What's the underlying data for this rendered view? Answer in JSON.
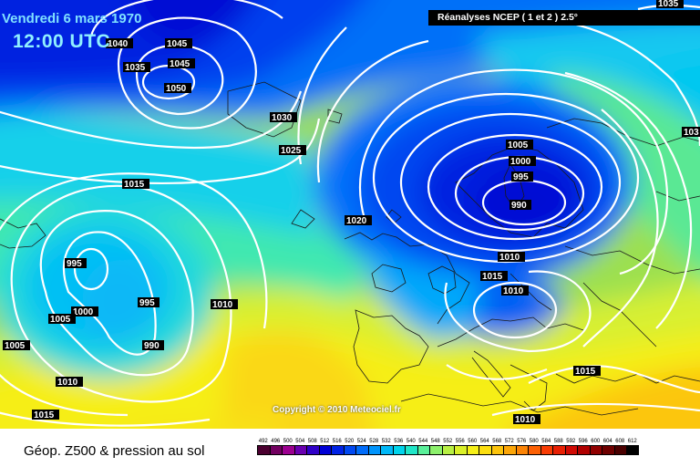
{
  "header": {
    "date": "Vendredi 6 mars 1970",
    "time": "12:00 UTC",
    "source": "Réanalyses NCEP ( 1 et 2 ) 2.5°"
  },
  "footer": {
    "caption": "Géop. Z500 & pression au sol",
    "copyright": "Copyright © 2010 Meteociel.fr"
  },
  "legend": {
    "values": [
      "492",
      "496",
      "500",
      "504",
      "508",
      "512",
      "516",
      "520",
      "524",
      "528",
      "532",
      "536",
      "540",
      "544",
      "548",
      "552",
      "556",
      "560",
      "564",
      "568",
      "572",
      "576",
      "580",
      "584",
      "588",
      "592",
      "596",
      "600",
      "604",
      "608",
      "612"
    ],
    "colors": [
      "#4b0030",
      "#720060",
      "#9c0090",
      "#6a00b0",
      "#3000c8",
      "#0000d6",
      "#0022e6",
      "#0048f2",
      "#006cfa",
      "#0094fc",
      "#00b8f8",
      "#00d4ec",
      "#20e6c8",
      "#5af09a",
      "#8cf06c",
      "#b8f044",
      "#daf028",
      "#f6f018",
      "#fbde10",
      "#fcc40c",
      "#fca608",
      "#fc8406",
      "#fc6004",
      "#f83c04",
      "#e82004",
      "#d00a04",
      "#b00000",
      "#900000",
      "#6e0000",
      "#4a0000",
      "#000000"
    ]
  },
  "isobars": [
    {
      "label": "1045"
    },
    {
      "label": "1045"
    },
    {
      "label": "1050"
    },
    {
      "label": "1040"
    },
    {
      "label": "1035"
    },
    {
      "label": "1030"
    },
    {
      "label": "1025"
    },
    {
      "label": "1020"
    },
    {
      "label": "1015"
    },
    {
      "label": "1005"
    },
    {
      "label": "1000"
    },
    {
      "label": "995"
    },
    {
      "label": "990"
    },
    {
      "label": "1010"
    },
    {
      "label": "1015"
    },
    {
      "label": "1010"
    },
    {
      "label": "1015"
    },
    {
      "label": "1010"
    },
    {
      "label": "995"
    },
    {
      "label": "1000"
    },
    {
      "label": "1005"
    },
    {
      "label": "995"
    },
    {
      "label": "990"
    },
    {
      "label": "1010"
    },
    {
      "label": "1005"
    },
    {
      "label": "1010"
    },
    {
      "label": "1015"
    },
    {
      "label": "1035"
    },
    {
      "label": "103"
    }
  ]
}
